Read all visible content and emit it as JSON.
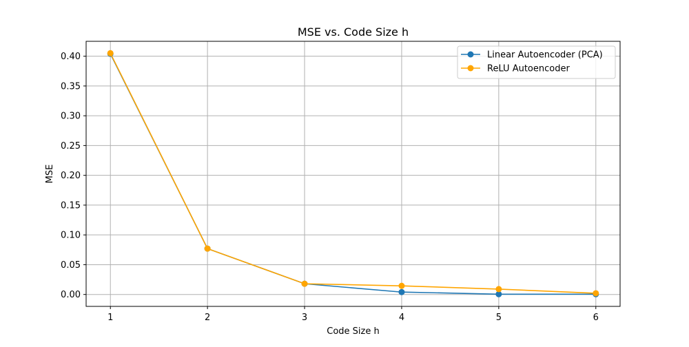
{
  "chart_data": {
    "type": "line",
    "title": "MSE vs. Code Size h",
    "xlabel": "Code Size h",
    "ylabel": "MSE",
    "x": [
      1,
      2,
      3,
      4,
      5,
      6
    ],
    "xlim": [
      0.75,
      6.25
    ],
    "ylim": [
      -0.02,
      0.425
    ],
    "xticks": [
      "1",
      "2",
      "3",
      "4",
      "5",
      "6"
    ],
    "yticks": [
      "0.00",
      "0.05",
      "0.10",
      "0.15",
      "0.20",
      "0.25",
      "0.30",
      "0.35",
      "0.40"
    ],
    "grid": true,
    "legend_position": "top-right",
    "series": [
      {
        "name": "Linear Autoencoder (PCA)",
        "values": [
          0.404,
          0.077,
          0.018,
          0.004,
          0.0005,
          0.0005
        ],
        "color": "#1f77b4"
      },
      {
        "name": "ReLU Autoencoder",
        "values": [
          0.405,
          0.077,
          0.018,
          0.0145,
          0.009,
          0.002
        ],
        "color": "#ffa500"
      }
    ]
  }
}
